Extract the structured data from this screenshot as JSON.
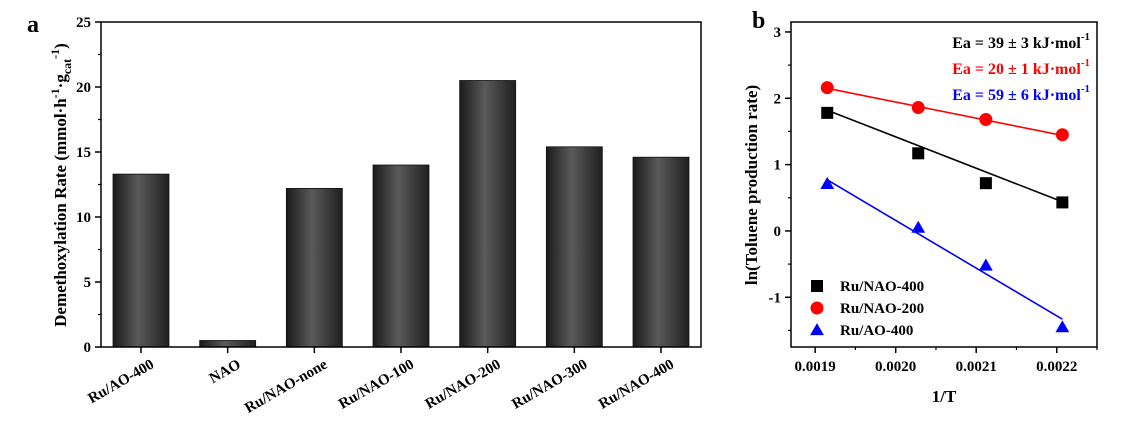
{
  "chart_data": [
    {
      "panel": "a",
      "type": "bar",
      "categories": [
        "Ru/AO-400",
        "NAO",
        "Ru/NAO-none",
        "Ru/NAO-100",
        "Ru/NAO-200",
        "Ru/NAO-300",
        "Ru/NAO-400"
      ],
      "values": [
        13.3,
        0.5,
        12.2,
        14.0,
        20.5,
        15.4,
        14.6
      ],
      "ylabel_parts": {
        "main": "Demethoxylation Rate (mmol·h",
        "sup1": "-1",
        "mid": "·g",
        "sub": "cat",
        "sup2": "-1",
        "end": ")"
      },
      "xlabel": "",
      "ylim": [
        0,
        25
      ],
      "yticks": [
        0,
        5,
        10,
        15,
        20,
        25
      ],
      "grid": false,
      "bar_color": "#2e2e2e"
    },
    {
      "panel": "b",
      "type": "scatter",
      "xlabel": "1/T",
      "ylabel": "ln(Toluene production rate)",
      "xlim": [
        0.00187,
        0.00225
      ],
      "ylim": [
        -1.75,
        3.15
      ],
      "xticks": [
        "0.0019",
        "0.0020",
        "0.0021",
        "0.0022"
      ],
      "xtick_values": [
        0.0019,
        0.002,
        0.0021,
        0.0022
      ],
      "yticks": [
        -1,
        0,
        1,
        2,
        3
      ],
      "grid": false,
      "legend_position": "bottom-left",
      "series": [
        {
          "name": "Ru/NAO-400",
          "marker": "square",
          "color": "#000000",
          "x": [
            0.001915,
            0.002028,
            0.002112,
            0.002207
          ],
          "y": [
            1.78,
            1.17,
            0.72,
            0.43
          ],
          "fit": {
            "x": [
              0.001915,
              0.002207
            ],
            "y": [
              1.82,
              0.44
            ]
          },
          "annotation": "Ea = 39 ± 3 kJ·mol",
          "annotation_sup": "-1"
        },
        {
          "name": "Ru/NAO-200",
          "marker": "circle",
          "color": "#ff0000",
          "x": [
            0.001915,
            0.002028,
            0.002112,
            0.002207
          ],
          "y": [
            2.16,
            1.86,
            1.68,
            1.45
          ],
          "fit": {
            "x": [
              0.001915,
              0.002207
            ],
            "y": [
              2.15,
              1.44
            ]
          },
          "annotation": "Ea = 20 ± 1 kJ·mol",
          "annotation_sup": "-1"
        },
        {
          "name": "Ru/AO-400",
          "marker": "triangle",
          "color": "#0000ff",
          "x": [
            0.001915,
            0.002028,
            0.002112,
            0.002207
          ],
          "y": [
            0.71,
            0.05,
            -0.52,
            -1.45
          ],
          "fit": {
            "x": [
              0.001915,
              0.002207
            ],
            "y": [
              0.77,
              -1.33
            ]
          },
          "annotation": "Ea = 59 ± 6 kJ·mol",
          "annotation_sup": "-1"
        }
      ]
    }
  ]
}
